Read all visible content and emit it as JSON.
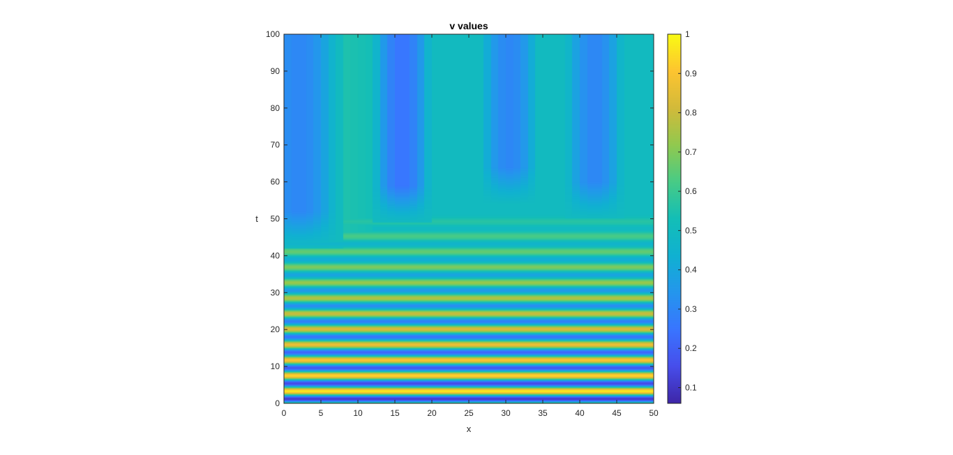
{
  "chart_data": {
    "type": "heatmap",
    "title": "v values",
    "xlabel": "x",
    "ylabel": "t",
    "xlim": [
      0,
      50
    ],
    "ylim": [
      0,
      100
    ],
    "x_ticks": [
      0,
      5,
      10,
      15,
      20,
      25,
      30,
      35,
      40,
      45,
      50
    ],
    "y_ticks": [
      0,
      10,
      20,
      30,
      40,
      50,
      60,
      70,
      80,
      90,
      100
    ],
    "colorbar": {
      "limits": [
        0.06,
        1.0
      ],
      "ticks": [
        0.1,
        0.2,
        0.3,
        0.4,
        0.5,
        0.6,
        0.7,
        0.8,
        0.9,
        1
      ],
      "tick_labels": [
        "0.1",
        "0.2",
        "0.3",
        "0.4",
        "0.5",
        "0.6",
        "0.7",
        "0.8",
        "0.9",
        "1"
      ],
      "colormap": "parula"
    },
    "description_values": {
      "oscillation_region_t": [
        0,
        48
      ],
      "oscillation_period_t": 4.2,
      "oscillation_amplitude_start": 0.45,
      "oscillation_amplitude_end": 0.05,
      "oscillation_mean": 0.55,
      "transition_t": 52,
      "background_value_upper": 0.5,
      "low_columns": [
        {
          "x_center": 2,
          "half_width": 4,
          "min_value": 0.3,
          "t_start": 50
        },
        {
          "x_center": 16,
          "half_width": 3,
          "min_value": 0.25,
          "t_start": 57
        },
        {
          "x_center": 30.5,
          "half_width": 3,
          "min_value": 0.3,
          "t_start": 62
        },
        {
          "x_center": 42,
          "half_width": 3,
          "min_value": 0.3,
          "t_start": 58
        }
      ],
      "high_band": {
        "x_range": [
          5,
          12
        ],
        "value": 0.55
      },
      "grid_columns": 50
    }
  }
}
